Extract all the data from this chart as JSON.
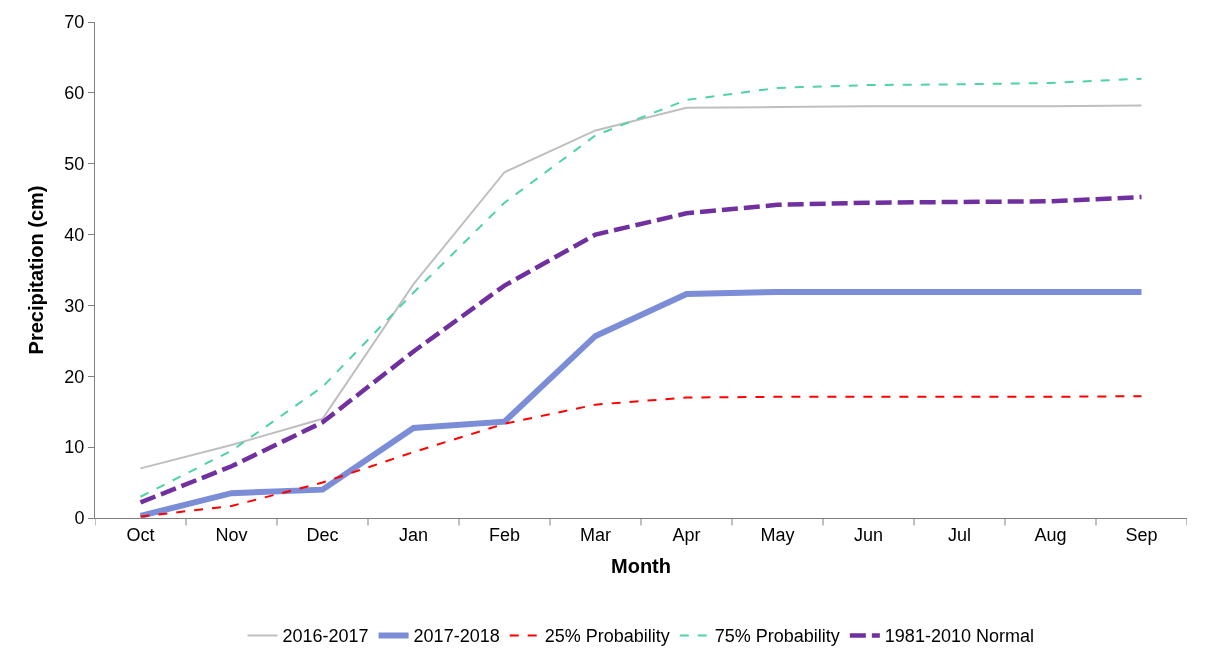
{
  "chart_data": {
    "type": "line",
    "xlabel": "Month",
    "ylabel": "Precipitation (cm)",
    "categories": [
      "Oct",
      "Nov",
      "Dec",
      "Jan",
      "Feb",
      "Mar",
      "Apr",
      "May",
      "Jun",
      "Jul",
      "Aug",
      "Sep"
    ],
    "ylim": [
      0,
      70
    ],
    "yticks": [
      0,
      10,
      20,
      30,
      40,
      50,
      60,
      70
    ],
    "legend": "bottom",
    "marker": "none",
    "series": [
      {
        "name": "2016-2017",
        "color": "#bfbfbf",
        "line_style": "solid",
        "values": [
          7,
          10.3,
          14,
          33,
          48.8,
          54.7,
          57.9,
          58,
          58.1,
          58.1,
          58.1,
          58.2
        ]
      },
      {
        "name": "2017-2018",
        "color": "#7b8dd6",
        "line_style": "solid",
        "values": [
          0.3,
          3.5,
          4,
          12.7,
          13.6,
          25.7,
          31.6,
          31.9,
          31.9,
          31.9,
          31.9,
          31.9
        ]
      },
      {
        "name": "25% Probability",
        "color": "#ff0000",
        "line_style": "dashed",
        "values": [
          0.2,
          1.7,
          5,
          9.3,
          13.3,
          16,
          17,
          17.1,
          17.1,
          17.1,
          17.1,
          17.2
        ]
      },
      {
        "name": "75% Probability",
        "color": "#4fd3a0",
        "line_style": "dashed",
        "values": [
          3,
          9.5,
          18.5,
          31.8,
          44.5,
          54,
          59,
          60.7,
          61.1,
          61.2,
          61.4,
          62
        ]
      },
      {
        "name": "1981-2010 Normal",
        "color": "#7030a0",
        "line_style": "dashed",
        "values": [
          2.2,
          7.3,
          13.5,
          23.5,
          32.8,
          40,
          43,
          44.2,
          44.5,
          44.6,
          44.7,
          45.3
        ]
      }
    ]
  }
}
